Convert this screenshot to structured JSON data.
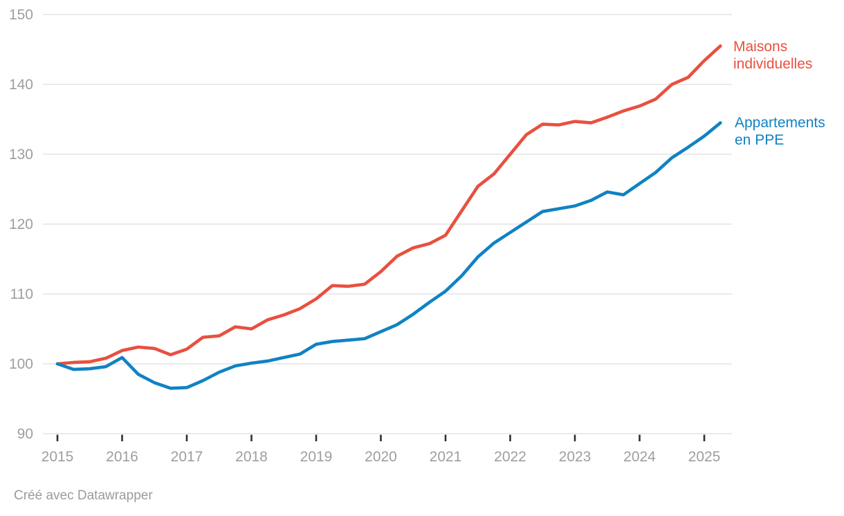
{
  "chart_data": {
    "type": "line",
    "title": "",
    "xlabel": "",
    "ylabel": "",
    "ylim": [
      90,
      150
    ],
    "grid": "horizontal",
    "legend_position": "right-of-line-ends",
    "y_ticks": [
      150,
      140,
      130,
      120,
      110,
      100,
      90
    ],
    "x_tick_labels": [
      "2015",
      "2016",
      "2017",
      "2018",
      "2019",
      "2020",
      "2021",
      "2022",
      "2023",
      "2024",
      "2025"
    ],
    "x_quarters": [
      "2015-Q1",
      "2015-Q2",
      "2015-Q3",
      "2015-Q4",
      "2016-Q1",
      "2016-Q2",
      "2016-Q3",
      "2016-Q4",
      "2017-Q1",
      "2017-Q2",
      "2017-Q3",
      "2017-Q4",
      "2018-Q1",
      "2018-Q2",
      "2018-Q3",
      "2018-Q4",
      "2019-Q1",
      "2019-Q2",
      "2019-Q3",
      "2019-Q4",
      "2020-Q1",
      "2020-Q2",
      "2020-Q3",
      "2020-Q4",
      "2021-Q1",
      "2021-Q2",
      "2021-Q3",
      "2021-Q4",
      "2022-Q1",
      "2022-Q2",
      "2022-Q3",
      "2022-Q4",
      "2023-Q1",
      "2023-Q2",
      "2023-Q3",
      "2023-Q4",
      "2024-Q1",
      "2024-Q2",
      "2024-Q3",
      "2024-Q4",
      "2025-Q1",
      "2025-Q2"
    ],
    "series": [
      {
        "name": "Maisons individuelles",
        "color": "#e8503f",
        "values": [
          100.0,
          100.2,
          100.3,
          100.8,
          101.9,
          102.4,
          102.2,
          101.3,
          102.1,
          103.8,
          104.0,
          105.3,
          105.0,
          106.3,
          107.0,
          107.9,
          109.3,
          111.2,
          111.1,
          111.4,
          113.2,
          115.4,
          116.6,
          117.2,
          118.4,
          121.9,
          125.4,
          127.2,
          130.0,
          132.8,
          134.3,
          134.2,
          134.7,
          134.5,
          135.3,
          136.2,
          136.9,
          137.9,
          140.0,
          141.0,
          143.4,
          145.5
        ]
      },
      {
        "name": "Appartements en PPE",
        "color": "#1082c4",
        "values": [
          100.0,
          99.2,
          99.3,
          99.6,
          100.9,
          98.5,
          97.3,
          96.5,
          96.6,
          97.6,
          98.8,
          99.7,
          100.1,
          100.4,
          100.9,
          101.4,
          102.8,
          103.2,
          103.4,
          103.6,
          104.6,
          105.6,
          107.1,
          108.8,
          110.4,
          112.6,
          115.3,
          117.3,
          118.8,
          120.3,
          121.8,
          122.2,
          122.6,
          123.4,
          124.6,
          124.2,
          125.8,
          127.4,
          129.5,
          131.0,
          132.6,
          134.5
        ]
      }
    ]
  },
  "colors": {
    "red": "#e8503f",
    "blue": "#1082c4",
    "axis_text": "#9e9e9e",
    "grid_line": "#e4e4e4",
    "tick_mark": "#2f2f2f"
  },
  "footer": {
    "credit": "Créé avec Datawrapper"
  }
}
